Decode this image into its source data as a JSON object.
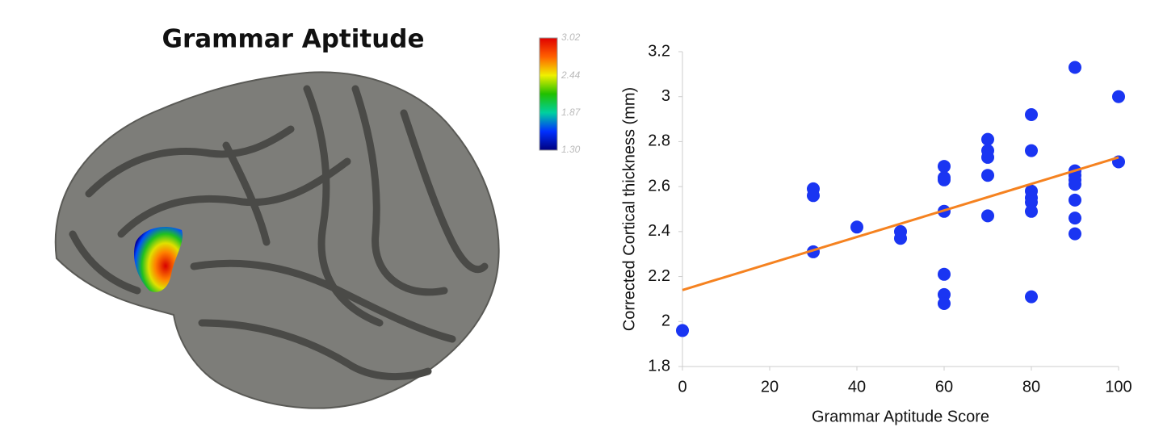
{
  "chart_data": [
    {
      "type": "colorbar",
      "title": "Grammar Aptitude",
      "clim": [
        1.3,
        3.02
      ],
      "cticks": [
        3.02,
        2.44,
        1.87,
        {
          "value": 1.3,
          "label": "1.30"
        }
      ],
      "colors": [
        "#00007f",
        "#0030ff",
        "#00d0a0",
        "#20c000",
        "#f0f000",
        "#ff6000",
        "#e00000"
      ]
    },
    {
      "type": "scatter",
      "xlabel": "Grammar Aptitude Score",
      "ylabel": "Corrected Cortical thickness (mm)",
      "xlim": [
        0,
        100
      ],
      "ylim": [
        1.8,
        3.2
      ],
      "xticks": [
        0,
        20,
        40,
        60,
        80,
        100
      ],
      "yticks": [
        1.8,
        2,
        2.2,
        2.4,
        2.6,
        2.8,
        3,
        3.2
      ],
      "color": "#1a35f2",
      "x": [
        0,
        30,
        30,
        30,
        40,
        50,
        50,
        60,
        60,
        60,
        60,
        60,
        60,
        60,
        70,
        70,
        70,
        70,
        70,
        80,
        80,
        80,
        80,
        80,
        80,
        80,
        90,
        90,
        90,
        90,
        90,
        90,
        90,
        90,
        100,
        100
      ],
      "y": [
        1.96,
        2.59,
        2.56,
        2.31,
        2.42,
        2.4,
        2.37,
        2.69,
        2.64,
        2.63,
        2.49,
        2.21,
        2.12,
        2.08,
        2.81,
        2.76,
        2.73,
        2.65,
        2.47,
        2.92,
        2.76,
        2.58,
        2.55,
        2.53,
        2.49,
        2.11,
        3.13,
        2.67,
        2.65,
        2.63,
        2.61,
        2.54,
        2.46,
        2.39,
        3.0,
        2.71
      ],
      "trendline": {
        "x": [
          0,
          100
        ],
        "y": [
          2.14,
          2.73
        ],
        "color": "#f58220"
      }
    }
  ]
}
